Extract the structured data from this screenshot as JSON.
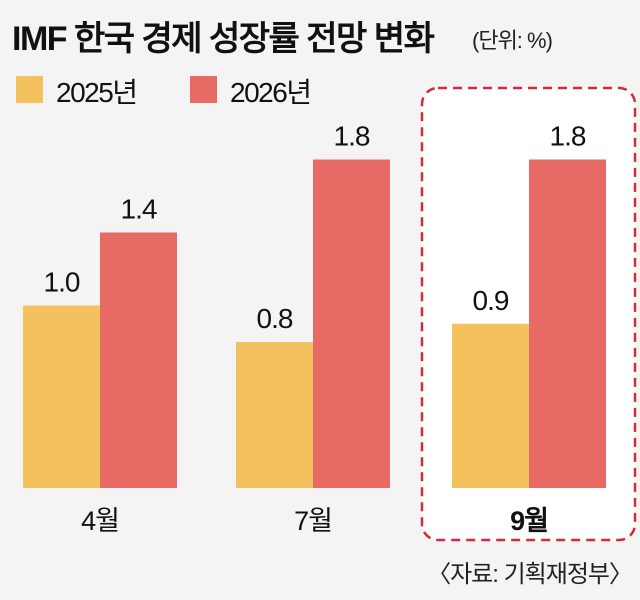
{
  "chart_data": {
    "type": "bar",
    "title": "IMF 한국 경제 성장률 전망 변화",
    "unit_note": "(단위: %)",
    "categories": [
      "4월",
      "7월",
      "9월"
    ],
    "series": [
      {
        "name": "2025년",
        "values": [
          1.0,
          0.8,
          0.9
        ],
        "color": "#f3c25f"
      },
      {
        "name": "2026년",
        "values": [
          1.4,
          1.8,
          1.8
        ],
        "color": "#e76b64"
      }
    ],
    "value_labels": [
      [
        "1.0",
        "0.8",
        "0.9"
      ],
      [
        "1.4",
        "1.8",
        "1.8"
      ]
    ],
    "highlighted_category": "9월",
    "highlight_color": "#d42a3a",
    "ylim": [
      0,
      2.2
    ],
    "grid": false,
    "legend_placement": "top-left",
    "source": "〈자료: 기획재정부〉"
  }
}
